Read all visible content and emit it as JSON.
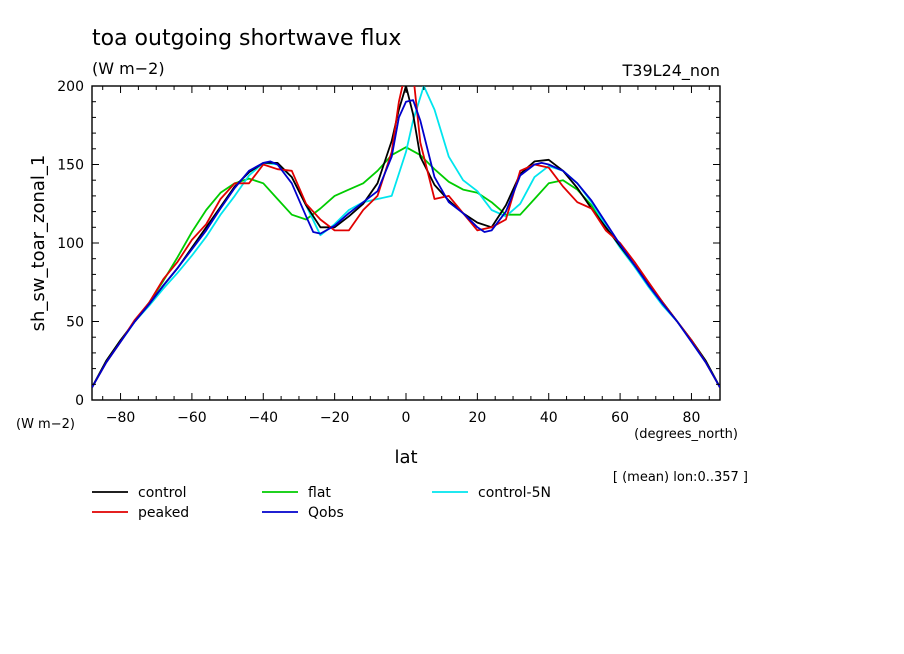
{
  "chart_data": {
    "type": "line",
    "title": "toa outgoing shortwave flux",
    "units_title": "(W m−2)",
    "model_label": "T39L24_non",
    "ylabel": "sh_sw_toar_zonal_1",
    "yunits": "(W m−2)",
    "xlabel": "lat",
    "xunits": "(degrees_north)",
    "footnote": "[ (mean) lon:0..357 ]",
    "xlim": [
      -88,
      88
    ],
    "ylim": [
      0,
      200
    ],
    "x_ticks": [
      "−80",
      "−60",
      "−40",
      "−20",
      "0",
      "20",
      "40",
      "60",
      "80"
    ],
    "y_ticks": [
      "0",
      "50",
      "100",
      "150",
      "200"
    ],
    "x_tick_values": [
      -80,
      -60,
      -40,
      -20,
      0,
      20,
      40,
      60,
      80
    ],
    "y_tick_values": [
      0,
      50,
      100,
      150,
      200
    ],
    "series": [
      {
        "name": "control",
        "color": "#000000",
        "x": [
          -88,
          -84,
          -80,
          -76,
          -72,
          -68,
          -64,
          -60,
          -56,
          -52,
          -48,
          -44,
          -40,
          -36,
          -32,
          -28,
          -24,
          -20,
          -16,
          -12,
          -8,
          -4,
          -2,
          0,
          2,
          4,
          8,
          12,
          16,
          20,
          24,
          28,
          32,
          36,
          40,
          44,
          48,
          52,
          56,
          60,
          64,
          68,
          72,
          76,
          80,
          84,
          88
        ],
        "y": [
          8,
          25,
          38,
          50,
          61,
          73,
          84,
          97,
          110,
          123,
          136,
          145,
          151,
          151,
          142,
          124,
          110,
          110,
          117,
          125,
          138,
          165,
          185,
          200,
          182,
          155,
          137,
          127,
          119,
          113,
          110,
          124,
          144,
          152,
          153,
          146,
          135,
          122,
          110,
          98,
          86,
          74,
          62,
          50,
          38,
          25,
          8
        ]
      },
      {
        "name": "peaked",
        "color": "#e00000",
        "x": [
          -88,
          -84,
          -80,
          -76,
          -72,
          -68,
          -64,
          -60,
          -56,
          -52,
          -48,
          -44,
          -40,
          -36,
          -32,
          -28,
          -24,
          -20,
          -16,
          -12,
          -8,
          -4,
          -2,
          0,
          2,
          4,
          8,
          12,
          16,
          20,
          24,
          28,
          32,
          36,
          40,
          44,
          48,
          52,
          56,
          60,
          64,
          68,
          72,
          76,
          80,
          84,
          88
        ],
        "y": [
          8,
          24,
          37,
          51,
          62,
          77,
          88,
          102,
          112,
          128,
          138,
          138,
          150,
          147,
          146,
          125,
          115,
          108,
          108,
          121,
          130,
          158,
          190,
          210,
          208,
          164,
          128,
          130,
          119,
          108,
          110,
          115,
          146,
          150,
          148,
          136,
          126,
          122,
          108,
          100,
          88,
          75,
          62,
          50,
          38,
          24,
          8
        ]
      },
      {
        "name": "flat",
        "color": "#00cc00",
        "x": [
          -88,
          -84,
          -80,
          -76,
          -72,
          -68,
          -64,
          -60,
          -56,
          -52,
          -48,
          -44,
          -40,
          -36,
          -32,
          -28,
          -24,
          -20,
          -16,
          -12,
          -8,
          -4,
          0,
          4,
          8,
          12,
          16,
          20,
          24,
          28,
          32,
          36,
          40,
          44,
          48,
          52,
          56,
          60,
          64,
          68,
          72,
          76,
          80,
          84,
          88
        ],
        "y": [
          8,
          25,
          38,
          50,
          62,
          76,
          91,
          107,
          121,
          132,
          138,
          141,
          138,
          128,
          118,
          115,
          122,
          130,
          134,
          138,
          146,
          156,
          161,
          156,
          147,
          139,
          134,
          132,
          126,
          118,
          118,
          128,
          138,
          140,
          134,
          124,
          110,
          98,
          86,
          74,
          62,
          50,
          38,
          25,
          8
        ]
      },
      {
        "name": "Qobs",
        "color": "#0000cc",
        "x": [
          -88,
          -84,
          -80,
          -76,
          -72,
          -68,
          -64,
          -60,
          -56,
          -52,
          -48,
          -44,
          -40,
          -38,
          -36,
          -32,
          -28,
          -26,
          -24,
          -20,
          -16,
          -12,
          -8,
          -4,
          -2,
          0,
          2,
          4,
          8,
          12,
          16,
          20,
          22,
          24,
          28,
          32,
          36,
          38,
          40,
          44,
          48,
          52,
          56,
          60,
          64,
          68,
          72,
          76,
          80,
          84,
          88
        ],
        "y": [
          8,
          24,
          37,
          50,
          61,
          73,
          84,
          96,
          108,
          122,
          135,
          146,
          151,
          152,
          150,
          138,
          117,
          107,
          106,
          111,
          119,
          126,
          133,
          155,
          180,
          190,
          191,
          178,
          142,
          126,
          119,
          110,
          107,
          108,
          120,
          143,
          150,
          151,
          150,
          146,
          138,
          127,
          113,
          99,
          86,
          73,
          61,
          50,
          37,
          24,
          8
        ]
      },
      {
        "name": "control-5N",
        "color": "#00e5ee",
        "x": [
          -88,
          -84,
          -80,
          -76,
          -72,
          -68,
          -64,
          -60,
          -56,
          -52,
          -48,
          -44,
          -40,
          -36,
          -32,
          -28,
          -24,
          -20,
          -16,
          -12,
          -8,
          -4,
          0,
          2,
          5,
          8,
          12,
          16,
          20,
          24,
          28,
          32,
          36,
          40,
          44,
          48,
          52,
          56,
          60,
          64,
          68,
          72,
          76,
          80,
          84,
          88
        ],
        "y": [
          8,
          24,
          37,
          50,
          60,
          71,
          81,
          92,
          104,
          118,
          130,
          143,
          151,
          150,
          142,
          124,
          105,
          112,
          121,
          126,
          128,
          130,
          158,
          178,
          200,
          185,
          155,
          140,
          133,
          121,
          117,
          125,
          142,
          149,
          146,
          138,
          126,
          111,
          97,
          85,
          72,
          60,
          50,
          37,
          24,
          8
        ]
      }
    ]
  },
  "legend": [
    {
      "name": "control",
      "color": "#000000"
    },
    {
      "name": "peaked",
      "color": "#e00000"
    },
    {
      "name": "flat",
      "color": "#00cc00"
    },
    {
      "name": "Qobs",
      "color": "#0000cc"
    },
    {
      "name": "control-5N",
      "color": "#00e5ee"
    }
  ]
}
